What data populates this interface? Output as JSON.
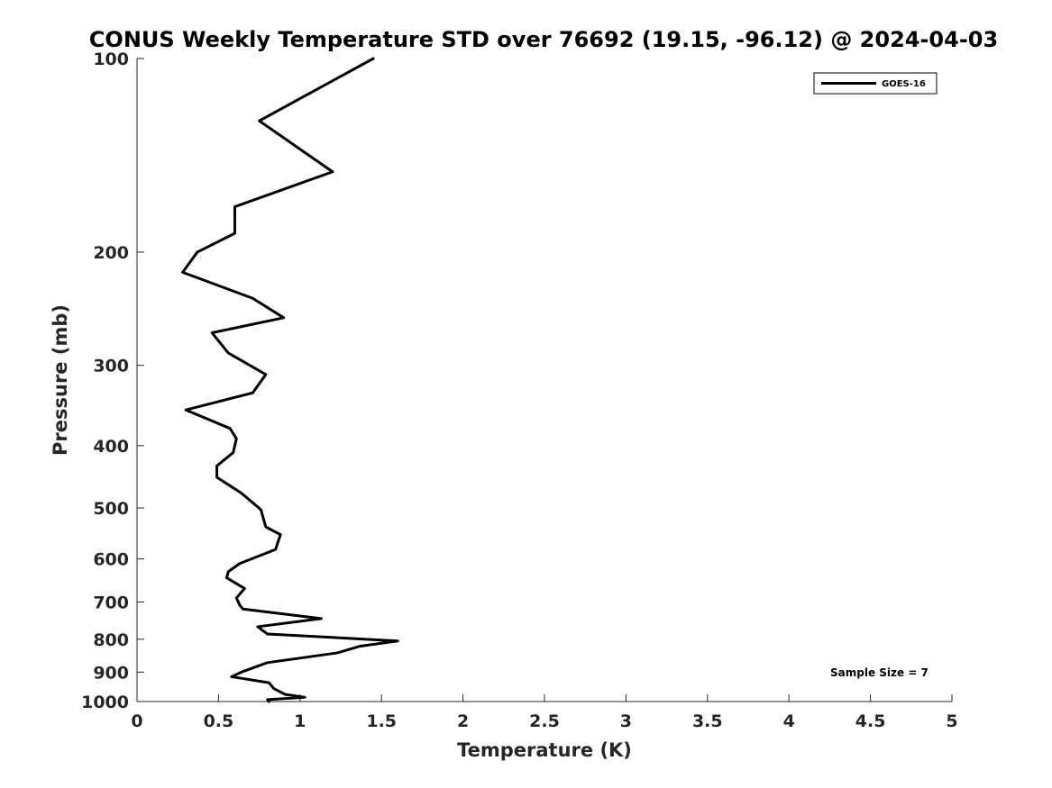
{
  "chart_data": {
    "type": "line",
    "title": "CONUS Weekly Temperature STD over 76692 (19.15, -96.12) @ 2024-04-03",
    "xlabel": "Temperature (K)",
    "ylabel": "Pressure (mb)",
    "xlim": [
      0,
      5
    ],
    "ylim": [
      100,
      1000
    ],
    "y_scale": "log",
    "y_reversed": true,
    "x_ticks": [
      0,
      0.5,
      1,
      1.5,
      2,
      2.5,
      3,
      3.5,
      4,
      4.5,
      5
    ],
    "x_tick_labels": [
      "0",
      "0.5",
      "1",
      "1.5",
      "2",
      "2.5",
      "3",
      "3.5",
      "4",
      "4.5",
      "5"
    ],
    "y_ticks": [
      100,
      200,
      300,
      400,
      500,
      600,
      700,
      800,
      900,
      1000
    ],
    "y_tick_labels": [
      "100",
      "200",
      "300",
      "400",
      "500",
      "600",
      "700",
      "800",
      "900",
      "1000"
    ],
    "grid": false,
    "legend_position": "top-right",
    "annotation": "Sample Size = 7",
    "series": [
      {
        "name": "GOES-16",
        "color": "#000000",
        "points": [
          [
            1.45,
            100
          ],
          [
            0.75,
            125
          ],
          [
            1.2,
            150
          ],
          [
            0.6,
            170
          ],
          [
            0.6,
            187
          ],
          [
            0.37,
            200
          ],
          [
            0.28,
            215
          ],
          [
            0.71,
            236
          ],
          [
            0.9,
            253
          ],
          [
            0.46,
            267
          ],
          [
            0.56,
            287
          ],
          [
            0.79,
            310
          ],
          [
            0.71,
            331
          ],
          [
            0.3,
            352
          ],
          [
            0.57,
            376
          ],
          [
            0.61,
            390
          ],
          [
            0.59,
            410
          ],
          [
            0.49,
            430
          ],
          [
            0.49,
            448
          ],
          [
            0.64,
            474
          ],
          [
            0.76,
            503
          ],
          [
            0.79,
            535
          ],
          [
            0.88,
            550
          ],
          [
            0.85,
            580
          ],
          [
            0.63,
            610
          ],
          [
            0.56,
            628
          ],
          [
            0.55,
            642
          ],
          [
            0.66,
            667
          ],
          [
            0.61,
            690
          ],
          [
            0.63,
            708
          ],
          [
            0.65,
            718
          ],
          [
            1.13,
            743
          ],
          [
            0.74,
            765
          ],
          [
            0.8,
            785
          ],
          [
            1.6,
            805
          ],
          [
            1.37,
            820
          ],
          [
            1.23,
            840
          ],
          [
            0.8,
            870
          ],
          [
            0.64,
            900
          ],
          [
            0.58,
            915
          ],
          [
            0.81,
            935
          ],
          [
            0.84,
            955
          ],
          [
            0.91,
            975
          ],
          [
            1.03,
            985
          ],
          [
            0.8,
            993
          ],
          [
            0.81,
            1000
          ]
        ]
      }
    ]
  }
}
